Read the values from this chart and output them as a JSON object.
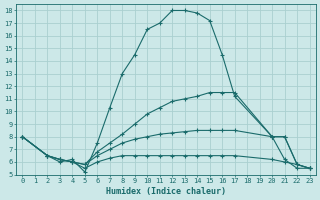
{
  "xlabel": "Humidex (Indice chaleur)",
  "background_color": "#cce8e8",
  "grid_color": "#aad0d0",
  "line_color": "#1a6b6b",
  "xlim": [
    -0.5,
    23.5
  ],
  "ylim": [
    5,
    18.5
  ],
  "xticks": [
    0,
    1,
    2,
    3,
    4,
    5,
    6,
    7,
    8,
    9,
    10,
    11,
    12,
    13,
    14,
    15,
    16,
    17,
    18,
    19,
    20,
    21,
    22,
    23
  ],
  "yticks": [
    5,
    6,
    7,
    8,
    9,
    10,
    11,
    12,
    13,
    14,
    15,
    16,
    17,
    18
  ],
  "series": [
    {
      "x": [
        0,
        2,
        3,
        4,
        5,
        6,
        7,
        8,
        9,
        10,
        11,
        12,
        13,
        14,
        15,
        16,
        17,
        20,
        21,
        22,
        23
      ],
      "y": [
        8,
        6.5,
        6.0,
        6.2,
        5.2,
        7.5,
        10.3,
        13.0,
        14.5,
        16.5,
        17.0,
        18.0,
        18.0,
        17.8,
        17.2,
        14.5,
        11.2,
        8.0,
        6.2,
        5.5,
        5.5
      ]
    },
    {
      "x": [
        0,
        2,
        3,
        4,
        5,
        6,
        7,
        8,
        9,
        10,
        11,
        12,
        13,
        14,
        15,
        16,
        17,
        20,
        21,
        22,
        23
      ],
      "y": [
        8,
        6.5,
        6.2,
        6.0,
        5.8,
        6.8,
        7.5,
        8.2,
        9.0,
        9.8,
        10.3,
        10.8,
        11.0,
        11.2,
        11.5,
        11.5,
        11.5,
        8.0,
        8.0,
        5.8,
        5.5
      ]
    },
    {
      "x": [
        0,
        2,
        3,
        4,
        5,
        6,
        7,
        8,
        9,
        10,
        11,
        12,
        13,
        14,
        15,
        16,
        17,
        20,
        21,
        22,
        23
      ],
      "y": [
        8,
        6.5,
        6.2,
        6.0,
        5.8,
        6.5,
        7.0,
        7.5,
        7.8,
        8.0,
        8.2,
        8.3,
        8.4,
        8.5,
        8.5,
        8.5,
        8.5,
        8.0,
        8.0,
        5.8,
        5.5
      ]
    },
    {
      "x": [
        0,
        2,
        3,
        4,
        5,
        6,
        7,
        8,
        9,
        10,
        11,
        12,
        13,
        14,
        15,
        16,
        17,
        20,
        21,
        22,
        23
      ],
      "y": [
        8,
        6.5,
        6.2,
        6.0,
        5.5,
        6.0,
        6.3,
        6.5,
        6.5,
        6.5,
        6.5,
        6.5,
        6.5,
        6.5,
        6.5,
        6.5,
        6.5,
        6.2,
        6.0,
        5.8,
        5.5
      ]
    }
  ]
}
